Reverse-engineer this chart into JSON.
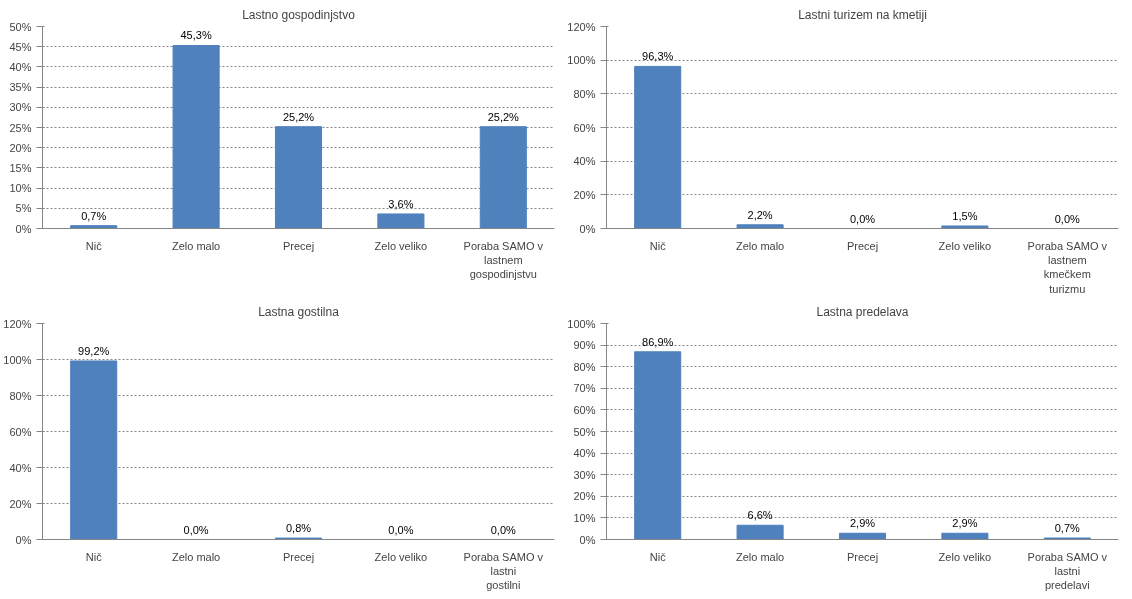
{
  "chart_data": [
    {
      "type": "bar",
      "title": "Lastno gospodinjstvo",
      "categories": [
        "Nič",
        "Zelo malo",
        "Precej",
        "Zelo veliko",
        "Poraba SAMO v lastnem gospodinjstvu"
      ],
      "values": [
        0.7,
        45.3,
        25.2,
        3.6,
        25.2
      ],
      "value_labels": [
        "0,7%",
        "45,3%",
        "25,2%",
        "3,6%",
        "25,2%"
      ],
      "color": "#4f81bd",
      "ylim": [
        0,
        50
      ],
      "yticks": [
        {
          "value": 0,
          "label": "0%"
        },
        {
          "value": 5,
          "label": "5%"
        },
        {
          "value": 10,
          "label": "10%"
        },
        {
          "value": 15,
          "label": "15%"
        },
        {
          "value": 20,
          "label": "20%"
        },
        {
          "value": 25,
          "label": "25%"
        },
        {
          "value": 30,
          "label": "30%"
        },
        {
          "value": 35,
          "label": "35%"
        },
        {
          "value": 40,
          "label": "40%"
        },
        {
          "value": 45,
          "label": "45%"
        },
        {
          "value": 50,
          "label": "50%"
        }
      ],
      "grid": "y"
    },
    {
      "type": "bar",
      "title": "Lastni turizem na kmetiji",
      "categories": [
        "Nič",
        "Zelo malo",
        "Precej",
        "Zelo veliko",
        "Poraba SAMO v lastnem kmečkem turizmu"
      ],
      "values": [
        96.3,
        2.2,
        0.0,
        1.5,
        0.0
      ],
      "value_labels": [
        "96,3%",
        "2,2%",
        "0,0%",
        "1,5%",
        "0,0%"
      ],
      "color": "#4f81bd",
      "ylim": [
        0,
        120
      ],
      "yticks": [
        {
          "value": 0,
          "label": "0%"
        },
        {
          "value": 20,
          "label": "20%"
        },
        {
          "value": 40,
          "label": "40%"
        },
        {
          "value": 60,
          "label": "60%"
        },
        {
          "value": 80,
          "label": "80%"
        },
        {
          "value": 100,
          "label": "100%"
        },
        {
          "value": 120,
          "label": "120%"
        }
      ],
      "grid": "y"
    },
    {
      "type": "bar",
      "title": "Lastna gostilna",
      "categories": [
        "Nič",
        "Zelo malo",
        "Precej",
        "Zelo veliko",
        "Poraba SAMO v lastni gostilni"
      ],
      "values": [
        99.2,
        0.0,
        0.8,
        0.0,
        0.0
      ],
      "value_labels": [
        "99,2%",
        "0,0%",
        "0,8%",
        "0,0%",
        "0,0%"
      ],
      "color": "#4f81bd",
      "ylim": [
        0,
        120
      ],
      "yticks": [
        {
          "value": 0,
          "label": "0%"
        },
        {
          "value": 20,
          "label": "20%"
        },
        {
          "value": 40,
          "label": "40%"
        },
        {
          "value": 60,
          "label": "60%"
        },
        {
          "value": 80,
          "label": "80%"
        },
        {
          "value": 100,
          "label": "100%"
        },
        {
          "value": 120,
          "label": "120%"
        }
      ],
      "grid": "y"
    },
    {
      "type": "bar",
      "title": "Lastna predelava",
      "categories": [
        "Nič",
        "Zelo malo",
        "Precej",
        "Zelo veliko",
        "Poraba SAMO v lastni predelavi"
      ],
      "values": [
        86.9,
        6.6,
        2.9,
        2.9,
        0.7
      ],
      "value_labels": [
        "86,9%",
        "6,6%",
        "2,9%",
        "2,9%",
        "0,7%"
      ],
      "color": "#4f81bd",
      "ylim": [
        0,
        100
      ],
      "yticks": [
        {
          "value": 0,
          "label": "0%"
        },
        {
          "value": 10,
          "label": "10%"
        },
        {
          "value": 20,
          "label": "20%"
        },
        {
          "value": 30,
          "label": "30%"
        },
        {
          "value": 40,
          "label": "40%"
        },
        {
          "value": 50,
          "label": "50%"
        },
        {
          "value": 60,
          "label": "60%"
        },
        {
          "value": 70,
          "label": "70%"
        },
        {
          "value": 80,
          "label": "80%"
        },
        {
          "value": 90,
          "label": "90%"
        },
        {
          "value": 100,
          "label": "100%"
        }
      ],
      "grid": "y"
    }
  ]
}
